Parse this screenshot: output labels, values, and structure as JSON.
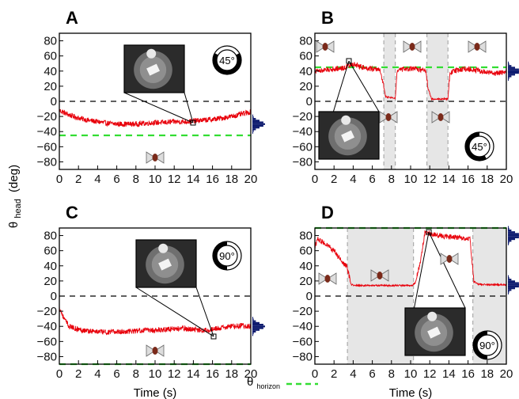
{
  "figure": {
    "y_axis_label_main": "θ",
    "y_axis_label_sub": "head",
    "y_axis_label_unit": "(deg)",
    "legend_label_main": "θ",
    "legend_label_sub": "horizon"
  },
  "chart_data": [
    {
      "type": "line",
      "panel": "A",
      "dial_label": "45°",
      "xlabel": "",
      "xlim": [
        0,
        20
      ],
      "ylim": [
        -90,
        90
      ],
      "x_ticks": [
        0,
        2,
        4,
        6,
        8,
        10,
        12,
        14,
        16,
        18,
        20
      ],
      "y_ticks": [
        -80,
        -60,
        -40,
        -20,
        0,
        20,
        40,
        60,
        80
      ],
      "horizon": -45,
      "shaded_intervals": [],
      "series": [
        {
          "color": "#e8000b",
          "x": [
            0,
            0.5,
            1,
            2,
            3,
            4,
            5,
            6,
            7,
            8,
            9,
            10,
            11,
            12,
            13,
            14,
            15,
            16,
            17,
            18,
            19,
            20
          ],
          "y": [
            -12,
            -15,
            -18,
            -22,
            -25,
            -27,
            -29,
            -30,
            -30,
            -30,
            -29,
            -28,
            -28,
            -27,
            -27,
            -26,
            -25,
            -24,
            -22,
            -20,
            -17,
            -14
          ]
        }
      ]
    },
    {
      "type": "line",
      "panel": "B",
      "dial_label": "45°",
      "xlabel": "",
      "xlim": [
        0,
        20
      ],
      "ylim": [
        -90,
        90
      ],
      "x_ticks": [
        0,
        2,
        4,
        6,
        8,
        10,
        12,
        14,
        16,
        18,
        20
      ],
      "y_ticks": [
        -80,
        -60,
        -40,
        -20,
        0,
        20,
        40,
        60,
        80
      ],
      "horizon": 45,
      "shaded_intervals": [
        [
          7.2,
          8.4
        ],
        [
          11.7,
          13.9
        ]
      ],
      "series": [
        {
          "color": "#e8000b",
          "x": [
            0,
            1,
            2,
            3,
            4,
            5,
            6,
            6.8,
            7.1,
            7.4,
            8.4,
            8.6,
            9,
            10,
            11,
            11.6,
            11.8,
            12.2,
            13.9,
            14.1,
            15,
            16,
            17,
            18,
            19,
            20
          ],
          "y": [
            40,
            41,
            43,
            44,
            49,
            45,
            43,
            42,
            25,
            6,
            4,
            40,
            42,
            43,
            42,
            41,
            18,
            3,
            3,
            38,
            42,
            43,
            41,
            38,
            37,
            39
          ]
        }
      ]
    },
    {
      "type": "line",
      "panel": "C",
      "dial_label": "90°",
      "xlabel": "Time (s)",
      "xlim": [
        0,
        20
      ],
      "ylim": [
        -90,
        90
      ],
      "x_ticks": [
        0,
        2,
        4,
        6,
        8,
        10,
        12,
        14,
        16,
        18,
        20
      ],
      "y_ticks": [
        -80,
        -60,
        -40,
        -20,
        0,
        20,
        40,
        60,
        80
      ],
      "horizon": -90,
      "shaded_intervals": [],
      "series": [
        {
          "color": "#e8000b",
          "x": [
            0,
            0.5,
            1,
            2,
            3,
            4,
            5,
            6,
            7,
            8,
            9,
            10,
            11,
            12,
            13,
            14,
            15,
            16,
            17,
            18,
            19,
            20
          ],
          "y": [
            -15,
            -30,
            -40,
            -44,
            -46,
            -47,
            -48,
            -47,
            -47,
            -46,
            -45,
            -45,
            -44,
            -43,
            -43,
            -44,
            -45,
            -44,
            -42,
            -40,
            -39,
            -40
          ]
        }
      ]
    },
    {
      "type": "line",
      "panel": "D",
      "dial_label": "90°",
      "xlabel": "Time (s)",
      "xlim": [
        0,
        20
      ],
      "ylim": [
        -90,
        90
      ],
      "x_ticks": [
        0,
        2,
        4,
        6,
        8,
        10,
        12,
        14,
        16,
        18,
        20
      ],
      "y_ticks": [
        -80,
        -60,
        -40,
        -20,
        0,
        20,
        40,
        60,
        80
      ],
      "horizon": 90,
      "shaded_intervals": [
        [
          3.4,
          10.3
        ],
        [
          16.5,
          20
        ]
      ],
      "series": [
        {
          "color": "#e8000b",
          "x": [
            0,
            0.3,
            1,
            2,
            2.8,
            3.3,
            3.8,
            4.5,
            6,
            8,
            10.2,
            10.5,
            11,
            11.5,
            12,
            13,
            14,
            15,
            16.2,
            16.6,
            17,
            18,
            19,
            20
          ],
          "y": [
            65,
            75,
            70,
            60,
            45,
            40,
            15,
            14,
            14,
            14,
            14,
            18,
            45,
            84,
            82,
            80,
            78,
            78,
            76,
            20,
            16,
            15,
            15,
            15
          ]
        }
      ]
    }
  ]
}
